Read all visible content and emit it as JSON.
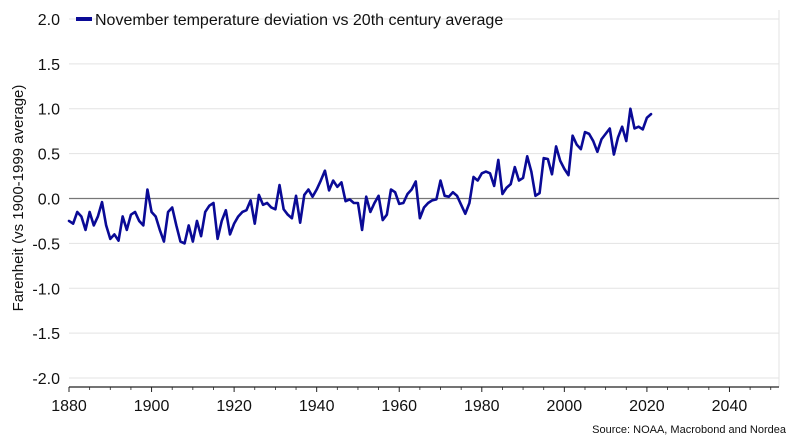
{
  "chart_data": {
    "type": "line",
    "ylabel": "Farenheit (vs 1900-1999 average)",
    "source": "Source: NOAA, Macrobond and Nordea",
    "xlim": [
      1880,
      2052
    ],
    "ylim": [
      -2.1,
      2.1
    ],
    "x_ticks": [
      1880,
      1900,
      1920,
      1940,
      1960,
      1980,
      2000,
      2020,
      2040
    ],
    "x_tick_labels": [
      "1880",
      "1900",
      "1920",
      "1940",
      "1960",
      "1980",
      "2000",
      "2020",
      "2040"
    ],
    "y_ticks": [
      2.0,
      1.5,
      1.0,
      0.5,
      0.0,
      -0.5,
      -1.0,
      -1.5,
      -2.0
    ],
    "y_tick_labels": [
      "2.0",
      "1.5",
      "1.0",
      "0.5",
      "0.0",
      "-0.5",
      "-1.0",
      "-1.5",
      "-2.0"
    ],
    "grid": "horizontal",
    "zero_line": true,
    "legend_position": "top-left",
    "series": [
      {
        "name": "November temperature deviation vs 20th century average",
        "color": "#0a0a96",
        "x": [
          1880,
          1881,
          1882,
          1883,
          1884,
          1885,
          1886,
          1887,
          1888,
          1889,
          1890,
          1891,
          1892,
          1893,
          1894,
          1895,
          1896,
          1897,
          1898,
          1899,
          1900,
          1901,
          1902,
          1903,
          1904,
          1905,
          1906,
          1907,
          1908,
          1909,
          1910,
          1911,
          1912,
          1913,
          1914,
          1915,
          1916,
          1917,
          1918,
          1919,
          1920,
          1921,
          1922,
          1923,
          1924,
          1925,
          1926,
          1927,
          1928,
          1929,
          1930,
          1931,
          1932,
          1933,
          1934,
          1935,
          1936,
          1937,
          1938,
          1939,
          1940,
          1941,
          1942,
          1943,
          1944,
          1945,
          1946,
          1947,
          1948,
          1949,
          1950,
          1951,
          1952,
          1953,
          1954,
          1955,
          1956,
          1957,
          1958,
          1959,
          1960,
          1961,
          1962,
          1963,
          1964,
          1965,
          1966,
          1967,
          1968,
          1969,
          1970,
          1971,
          1972,
          1973,
          1974,
          1975,
          1976,
          1977,
          1978,
          1979,
          1980,
          1981,
          1982,
          1983,
          1984,
          1985,
          1986,
          1987,
          1988,
          1989,
          1990,
          1991,
          1992,
          1993,
          1994,
          1995,
          1996,
          1997,
          1998,
          1999,
          2000,
          2001,
          2002,
          2003,
          2004,
          2005,
          2006,
          2007,
          2008,
          2009,
          2010,
          2011,
          2012,
          2013,
          2014,
          2015,
          2016,
          2017,
          2018,
          2019,
          2020,
          2021
        ],
        "y": [
          -0.25,
          -0.28,
          -0.15,
          -0.2,
          -0.35,
          -0.15,
          -0.3,
          -0.2,
          -0.04,
          -0.3,
          -0.45,
          -0.4,
          -0.47,
          -0.2,
          -0.35,
          -0.18,
          -0.15,
          -0.25,
          -0.3,
          0.1,
          -0.15,
          -0.2,
          -0.35,
          -0.48,
          -0.15,
          -0.1,
          -0.3,
          -0.48,
          -0.5,
          -0.3,
          -0.48,
          -0.25,
          -0.42,
          -0.15,
          -0.08,
          -0.05,
          -0.45,
          -0.25,
          -0.13,
          -0.4,
          -0.28,
          -0.2,
          -0.15,
          -0.13,
          -0.02,
          -0.28,
          0.04,
          -0.07,
          -0.05,
          -0.1,
          -0.12,
          0.15,
          -0.12,
          -0.18,
          -0.22,
          0.03,
          -0.27,
          0.04,
          0.1,
          0.02,
          0.1,
          0.2,
          0.31,
          0.09,
          0.2,
          0.13,
          0.18,
          -0.03,
          -0.01,
          -0.05,
          -0.05,
          -0.35,
          0.02,
          -0.15,
          -0.05,
          0.03,
          -0.24,
          -0.18,
          0.1,
          0.07,
          -0.06,
          -0.05,
          0.05,
          0.1,
          0.19,
          -0.22,
          -0.1,
          -0.05,
          -0.02,
          -0.01,
          0.2,
          0.03,
          0.02,
          0.07,
          0.03,
          -0.07,
          -0.17,
          -0.05,
          0.24,
          0.2,
          0.28,
          0.3,
          0.28,
          0.14,
          0.43,
          0.05,
          0.12,
          0.16,
          0.35,
          0.2,
          0.23,
          0.47,
          0.3,
          0.03,
          0.06,
          0.45,
          0.44,
          0.27,
          0.58,
          0.42,
          0.33,
          0.26,
          0.7,
          0.6,
          0.55,
          0.74,
          0.72,
          0.64,
          0.52,
          0.66,
          0.72,
          0.78,
          0.49,
          0.68,
          0.8,
          0.64,
          1.0,
          0.78,
          0.8,
          0.77,
          0.9,
          0.94
        ]
      }
    ]
  }
}
